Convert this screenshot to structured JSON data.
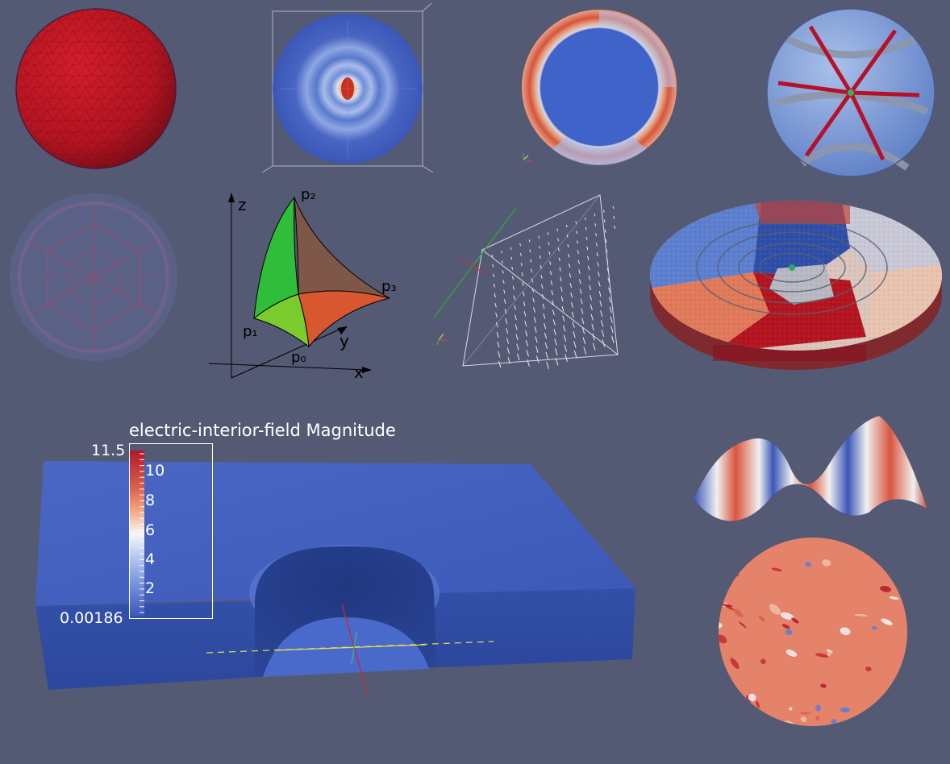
{
  "colorbar": {
    "title": "electric-interior-field Magnitude",
    "max_label": "11.5",
    "min_label": "0.00186",
    "ticks": [
      "10",
      "8",
      "6",
      "4",
      "2"
    ]
  },
  "tetra_diagram": {
    "axis_z": "z",
    "axis_y": "y",
    "axis_x": "x",
    "p0": "p₀",
    "p1": "p₁",
    "p2": "p₂",
    "p3": "p₃"
  },
  "colors": {
    "background": "#545a73",
    "cool": "#3a56b8",
    "warm": "#c1272d",
    "sphere_red": "#b3141f"
  }
}
